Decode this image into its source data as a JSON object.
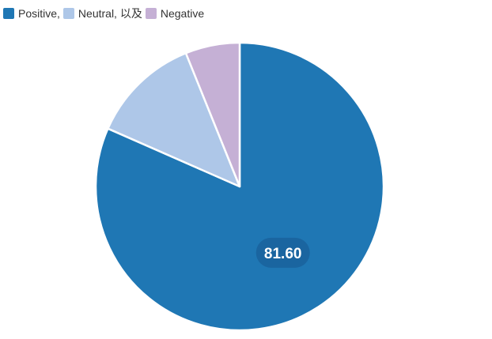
{
  "chart_data": {
    "type": "pie",
    "legend_position": "top-left",
    "series": [
      {
        "name": "Positive,",
        "value": 81.6,
        "color": "#1f77b4"
      },
      {
        "name": "Neutral, 以及",
        "value": 12.3,
        "color": "#aec7e8"
      },
      {
        "name": "Negative",
        "value": 6.1,
        "color": "#c5b0d5"
      }
    ],
    "data_labels": [
      {
        "series_index": 0,
        "text": "81.60",
        "badge_color": "#1a65a0"
      }
    ]
  }
}
